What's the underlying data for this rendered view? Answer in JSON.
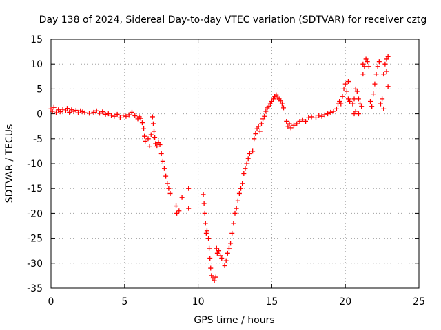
{
  "chart_data": {
    "type": "scatter",
    "title": "Day 138 of 2024, Sidereal Day-to-day VTEC variation (SDTVAR) for receiver cztg",
    "xlabel": "GPS time / hours",
    "ylabel": "SDTVAR / TECUs",
    "xlim": [
      0,
      25
    ],
    "ylim": [
      -35,
      15
    ],
    "xticks": [
      0,
      5,
      10,
      15,
      20,
      25
    ],
    "yticks": [
      15,
      10,
      5,
      0,
      -5,
      -10,
      -15,
      -20,
      -25,
      -30,
      -35
    ],
    "grid": true,
    "marker": "+",
    "color": "#ff0000",
    "series": [
      {
        "name": "SDTVAR",
        "points": [
          [
            0.0,
            1.0
          ],
          [
            0.1,
            0.5
          ],
          [
            0.2,
            1.3
          ],
          [
            0.35,
            0.2
          ],
          [
            0.5,
            0.8
          ],
          [
            0.65,
            0.4
          ],
          [
            0.8,
            0.9
          ],
          [
            1.0,
            0.6
          ],
          [
            1.1,
            1.1
          ],
          [
            1.25,
            0.3
          ],
          [
            1.4,
            0.8
          ],
          [
            1.55,
            0.5
          ],
          [
            1.7,
            0.7
          ],
          [
            1.85,
            0.2
          ],
          [
            2.0,
            0.6
          ],
          [
            2.15,
            0.4
          ],
          [
            2.3,
            0.2
          ],
          [
            2.6,
            0.1
          ],
          [
            2.9,
            0.3
          ],
          [
            3.1,
            0.6
          ],
          [
            3.3,
            0.1
          ],
          [
            3.5,
            0.4
          ],
          [
            3.7,
            -0.1
          ],
          [
            3.9,
            0.0
          ],
          [
            4.1,
            -0.3
          ],
          [
            4.3,
            -0.5
          ],
          [
            4.5,
            -0.1
          ],
          [
            4.7,
            -0.8
          ],
          [
            4.9,
            -0.3
          ],
          [
            5.1,
            -0.5
          ],
          [
            5.3,
            -0.2
          ],
          [
            5.5,
            0.3
          ],
          [
            5.7,
            -0.4
          ],
          [
            5.9,
            -1.0
          ],
          [
            6.0,
            -0.6
          ],
          [
            6.1,
            -0.9
          ],
          [
            6.2,
            -1.8
          ],
          [
            6.3,
            -3.0
          ],
          [
            6.35,
            -4.5
          ],
          [
            6.4,
            -5.5
          ],
          [
            6.6,
            -5.0
          ],
          [
            6.7,
            -6.5
          ],
          [
            6.8,
            -4.2
          ],
          [
            6.9,
            -0.6
          ],
          [
            6.95,
            -2.0
          ],
          [
            7.0,
            -3.5
          ],
          [
            7.05,
            -4.8
          ],
          [
            7.1,
            -6.0
          ],
          [
            7.2,
            -6.5
          ],
          [
            7.3,
            -5.8
          ],
          [
            7.4,
            -6.2
          ],
          [
            7.5,
            -8.0
          ],
          [
            7.6,
            -9.5
          ],
          [
            7.7,
            -11.0
          ],
          [
            7.8,
            -12.5
          ],
          [
            7.9,
            -14.0
          ],
          [
            8.0,
            -15.0
          ],
          [
            8.1,
            -16.0
          ],
          [
            8.5,
            -18.5
          ],
          [
            8.55,
            -20.0
          ],
          [
            8.7,
            -19.5
          ],
          [
            8.9,
            -16.8
          ],
          [
            9.35,
            -15.0
          ],
          [
            9.35,
            -19.0
          ],
          [
            10.35,
            -16.2
          ],
          [
            10.4,
            -18.0
          ],
          [
            10.45,
            -20.0
          ],
          [
            10.5,
            -22.0
          ],
          [
            10.55,
            -24.0
          ],
          [
            10.6,
            -23.5
          ],
          [
            10.7,
            -25.0
          ],
          [
            10.75,
            -27.0
          ],
          [
            10.8,
            -29.0
          ],
          [
            10.85,
            -31.0
          ],
          [
            10.9,
            -32.5
          ],
          [
            11.0,
            -33.0
          ],
          [
            11.1,
            -33.5
          ],
          [
            11.2,
            -32.8
          ],
          [
            11.25,
            -27.0
          ],
          [
            11.3,
            -28.0
          ],
          [
            11.4,
            -27.5
          ],
          [
            11.5,
            -28.5
          ],
          [
            11.6,
            -29.0
          ],
          [
            11.8,
            -30.5
          ],
          [
            11.9,
            -29.5
          ],
          [
            12.0,
            -28.0
          ],
          [
            12.1,
            -27.0
          ],
          [
            12.2,
            -26.0
          ],
          [
            12.3,
            -24.0
          ],
          [
            12.4,
            -22.0
          ],
          [
            12.5,
            -20.0
          ],
          [
            12.6,
            -19.0
          ],
          [
            12.7,
            -17.5
          ],
          [
            12.8,
            -16.0
          ],
          [
            12.9,
            -15.0
          ],
          [
            13.0,
            -14.0
          ],
          [
            13.1,
            -12.0
          ],
          [
            13.2,
            -11.0
          ],
          [
            13.3,
            -10.0
          ],
          [
            13.4,
            -9.0
          ],
          [
            13.5,
            -8.0
          ],
          [
            13.7,
            -7.5
          ],
          [
            13.8,
            -5.0
          ],
          [
            13.9,
            -4.0
          ],
          [
            14.0,
            -3.0
          ],
          [
            14.1,
            -2.5
          ],
          [
            14.2,
            -3.5
          ],
          [
            14.3,
            -2.0
          ],
          [
            14.4,
            -1.0
          ],
          [
            14.5,
            -0.5
          ],
          [
            14.6,
            0.5
          ],
          [
            14.7,
            1.2
          ],
          [
            14.8,
            1.5
          ],
          [
            14.9,
            2.0
          ],
          [
            15.0,
            2.5
          ],
          [
            15.1,
            3.0
          ],
          [
            15.2,
            3.5
          ],
          [
            15.3,
            3.8
          ],
          [
            15.4,
            3.2
          ],
          [
            15.5,
            3.0
          ],
          [
            15.6,
            2.6
          ],
          [
            15.7,
            2.0
          ],
          [
            15.8,
            1.2
          ],
          [
            16.0,
            -1.5
          ],
          [
            16.1,
            -2.5
          ],
          [
            16.2,
            -2.0
          ],
          [
            16.3,
            -2.8
          ],
          [
            16.5,
            -2.3
          ],
          [
            16.7,
            -2.0
          ],
          [
            16.9,
            -1.5
          ],
          [
            17.1,
            -1.2
          ],
          [
            17.3,
            -1.5
          ],
          [
            17.5,
            -0.8
          ],
          [
            17.7,
            -0.6
          ],
          [
            18.0,
            -0.8
          ],
          [
            18.2,
            -0.3
          ],
          [
            18.4,
            -0.5
          ],
          [
            18.6,
            -0.2
          ],
          [
            18.8,
            0.0
          ],
          [
            19.0,
            0.3
          ],
          [
            19.2,
            0.5
          ],
          [
            19.4,
            1.0
          ],
          [
            19.5,
            2.0
          ],
          [
            19.6,
            2.5
          ],
          [
            19.7,
            2.0
          ],
          [
            19.8,
            3.5
          ],
          [
            19.9,
            5.0
          ],
          [
            20.0,
            6.0
          ],
          [
            20.1,
            4.5
          ],
          [
            20.2,
            3.0
          ],
          [
            20.3,
            2.5
          ],
          [
            20.5,
            2.0
          ],
          [
            20.6,
            3.0
          ],
          [
            20.7,
            5.0
          ],
          [
            20.8,
            4.5
          ],
          [
            20.9,
            3.0
          ],
          [
            21.0,
            2.0
          ],
          [
            21.1,
            1.5
          ],
          [
            21.2,
            8.0
          ],
          [
            21.3,
            9.5
          ],
          [
            21.4,
            11.0
          ],
          [
            21.5,
            10.5
          ],
          [
            21.6,
            9.5
          ],
          [
            21.7,
            2.5
          ],
          [
            21.8,
            1.5
          ],
          [
            21.9,
            4.0
          ],
          [
            22.0,
            6.0
          ],
          [
            22.1,
            8.0
          ],
          [
            22.2,
            9.5
          ],
          [
            22.3,
            10.5
          ],
          [
            22.4,
            2.0
          ],
          [
            22.5,
            3.0
          ],
          [
            22.6,
            8.0
          ],
          [
            22.7,
            10.0
          ],
          [
            22.8,
            11.0
          ],
          [
            22.9,
            5.5
          ],
          [
            20.6,
            0.0
          ],
          [
            20.7,
            0.5
          ],
          [
            20.9,
            0.0
          ],
          [
            22.6,
            1.0
          ],
          [
            22.8,
            8.5
          ],
          [
            20.2,
            6.5
          ],
          [
            21.2,
            10.0
          ],
          [
            22.9,
            11.5
          ]
        ]
      }
    ]
  }
}
